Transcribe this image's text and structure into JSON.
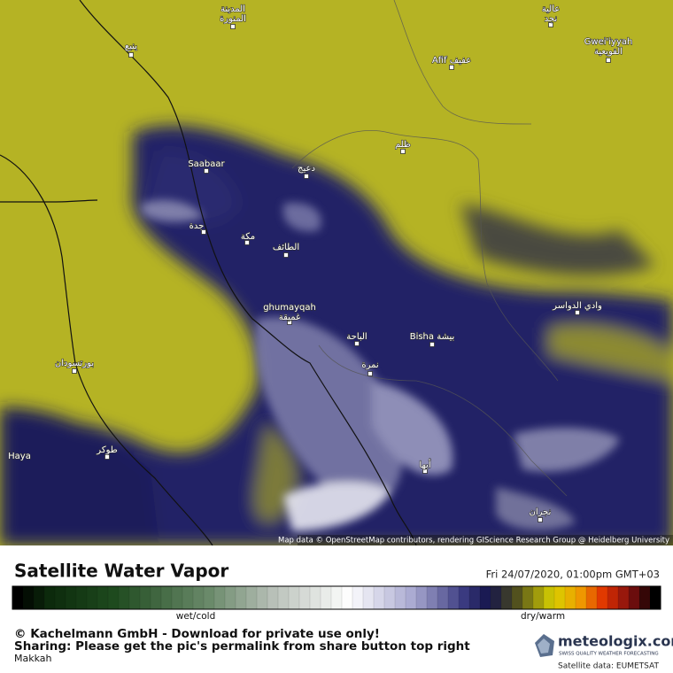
{
  "map": {
    "places": [
      {
        "lines": [
          "المدينة",
          "المنورة"
        ]
      },
      {
        "lines": [
          "ينبع"
        ]
      },
      {
        "lines": [
          "عالية",
          "نجد"
        ]
      },
      {
        "lines": [
          "Gwei'iyyah",
          "القويعية"
        ]
      },
      {
        "lines": [
          "Afif عفيف"
        ]
      },
      {
        "lines": [
          "ظلم"
        ]
      },
      {
        "lines": [
          "Saabaar"
        ]
      },
      {
        "lines": [
          "دعيج"
        ]
      },
      {
        "lines": [
          "جدة"
        ]
      },
      {
        "lines": [
          "مكة"
        ]
      },
      {
        "lines": [
          "الطائف"
        ]
      },
      {
        "lines": [
          "وادي الدواسر"
        ]
      },
      {
        "lines": [
          "ghumayqah",
          "غميقة"
        ]
      },
      {
        "lines": [
          "الباحة"
        ]
      },
      {
        "lines": [
          "Bisha بيشة"
        ]
      },
      {
        "lines": [
          "نمرة"
        ]
      },
      {
        "lines": [
          "بورتسودان"
        ]
      },
      {
        "lines": [
          "Haya"
        ]
      },
      {
        "lines": [
          "طوكر"
        ]
      },
      {
        "lines": [
          "أبها"
        ]
      },
      {
        "lines": [
          "نجران"
        ]
      }
    ],
    "attribution": "Map data © OpenStreetMap contributors, rendering GIScience Research Group @ Heidelberg University"
  },
  "legend": {
    "title": "Satellite Water Vapor",
    "datetime": "Fri 24/07/2020, 01:00pm GMT+03",
    "low_label": "wet/cold",
    "high_label": "dry/warm"
  },
  "footer": {
    "copyright": "© Kachelmann GmbH - Download for private use only!",
    "sharing": "Sharing: Please get the pic's permalink from share button top right",
    "region": "Makkah",
    "brand": "meteologix.com",
    "tagline": "SWISS QUALITY WEATHER FORECASTING",
    "source": "Satellite data: EUMETSAT"
  }
}
